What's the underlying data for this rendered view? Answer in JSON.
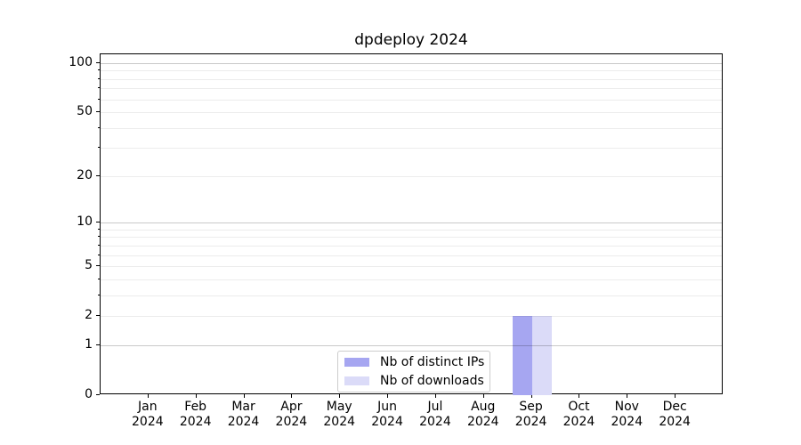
{
  "title": "dpdeploy 2024",
  "chart_data": {
    "type": "bar",
    "title": "dpdeploy 2024",
    "categories": [
      "Jan 2024",
      "Feb 2024",
      "Mar 2024",
      "Apr 2024",
      "May 2024",
      "Jun 2024",
      "Jul 2024",
      "Aug 2024",
      "Sep 2024",
      "Oct 2024",
      "Nov 2024",
      "Dec 2024"
    ],
    "x_ticks": [
      [
        "Jan",
        "2024"
      ],
      [
        "Feb",
        "2024"
      ],
      [
        "Mar",
        "2024"
      ],
      [
        "Apr",
        "2024"
      ],
      [
        "May",
        "2024"
      ],
      [
        "Jun",
        "2024"
      ],
      [
        "Jul",
        "2024"
      ],
      [
        "Aug",
        "2024"
      ],
      [
        "Sep",
        "2024"
      ],
      [
        "Oct",
        "2024"
      ],
      [
        "Nov",
        "2024"
      ],
      [
        "Dec",
        "2024"
      ]
    ],
    "series": [
      {
        "name": "Nb of distinct IPs",
        "color": "#a6a6f1",
        "values": [
          0,
          0,
          0,
          0,
          0,
          0,
          0,
          0,
          2,
          0,
          0,
          0
        ]
      },
      {
        "name": "Nb of downloads",
        "color": "#dbdbf8",
        "values": [
          0,
          0,
          0,
          0,
          0,
          0,
          0,
          0,
          2,
          0,
          0,
          0
        ]
      }
    ],
    "y_axis": {
      "scale": "log1p",
      "ylim": [
        0,
        100
      ],
      "ticks": [
        100,
        50,
        20,
        10,
        5,
        2,
        1,
        0
      ],
      "minor_ticks": [
        3,
        4,
        6,
        7,
        8,
        9,
        30,
        40,
        60,
        70,
        80,
        90
      ],
      "decade_ticks": [
        1,
        10,
        100
      ]
    },
    "grid": "horizontal",
    "legend_position": "lower center inside"
  }
}
